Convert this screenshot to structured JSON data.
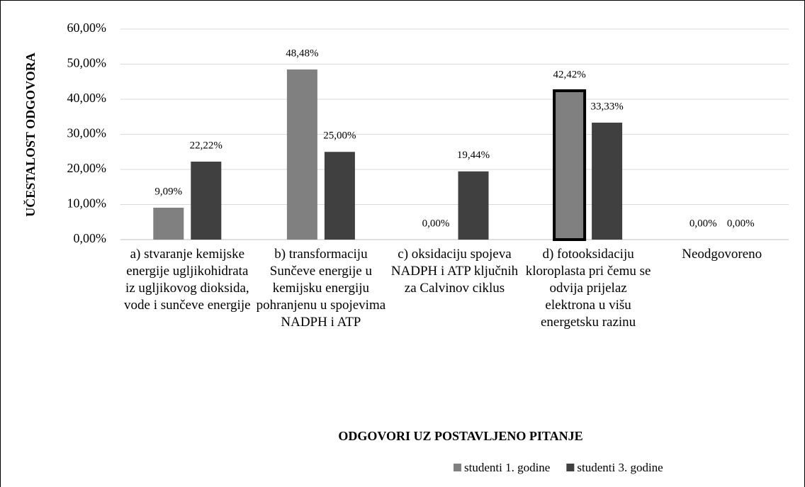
{
  "chart_data": {
    "type": "bar",
    "y_label": "UČESTALOST ODGOVORA",
    "x_label": "ODGOVORI UZ POSTAVLJENO PITANJE",
    "categories": [
      "a) stvaranje kemijske energije ugljikohidrata iz ugljikovog dioksida, vode i sunčeve energije",
      "b) transformaciju Sunčeve energije u kemijsku energiju pohranjenu u spojevima NADPH i ATP",
      "c) oksidaciju spojeva NADPH i ATP ključnih za Calvinov ciklus",
      "d) fotooksidaciju kloroplasta pri čemu se odvija prijelaz elektrona u višu energetsku razinu",
      "Neodgovoreno"
    ],
    "series": [
      {
        "name": "studenti 1. godine",
        "color": "#808080",
        "values": [
          9.09,
          48.48,
          0,
          42.42,
          0
        ],
        "value_labels": [
          "9,09%",
          "48,48%",
          "0,00%",
          "42,42%",
          "0,00%"
        ]
      },
      {
        "name": "studenti 3. godine",
        "color": "#404040",
        "values": [
          22.22,
          25.0,
          19.44,
          33.33,
          0
        ],
        "value_labels": [
          "22,22%",
          "25,00%",
          "19,44%",
          "33,33%",
          "0,00%"
        ]
      }
    ],
    "ylim": [
      0,
      60
    ],
    "yticks": [
      {
        "value": 0,
        "label": "0,00%"
      },
      {
        "value": 10,
        "label": "10,00%"
      },
      {
        "value": 20,
        "label": "20,00%"
      },
      {
        "value": 30,
        "label": "30,00%"
      },
      {
        "value": 40,
        "label": "40,00%"
      },
      {
        "value": 50,
        "label": "50,00%"
      },
      {
        "value": 60,
        "label": "60,00%"
      }
    ],
    "grid": true,
    "legend": "bottom-right"
  }
}
